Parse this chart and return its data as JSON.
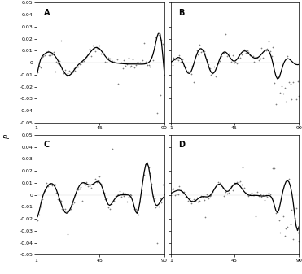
{
  "xlim": [
    1,
    90
  ],
  "ylim": [
    -0.05,
    0.05
  ],
  "xticks": [
    1,
    45,
    90
  ],
  "yticks": [
    -0.05,
    -0.04,
    -0.03,
    -0.02,
    -0.01,
    0,
    0.01,
    0.02,
    0.03,
    0.04,
    0.05
  ],
  "panel_labels": [
    "A",
    "B",
    "C",
    "D"
  ],
  "ylabel": "p",
  "background_color": "#ffffff",
  "line_color": "#000000",
  "scatter_color": "#666666",
  "n_points": 90
}
